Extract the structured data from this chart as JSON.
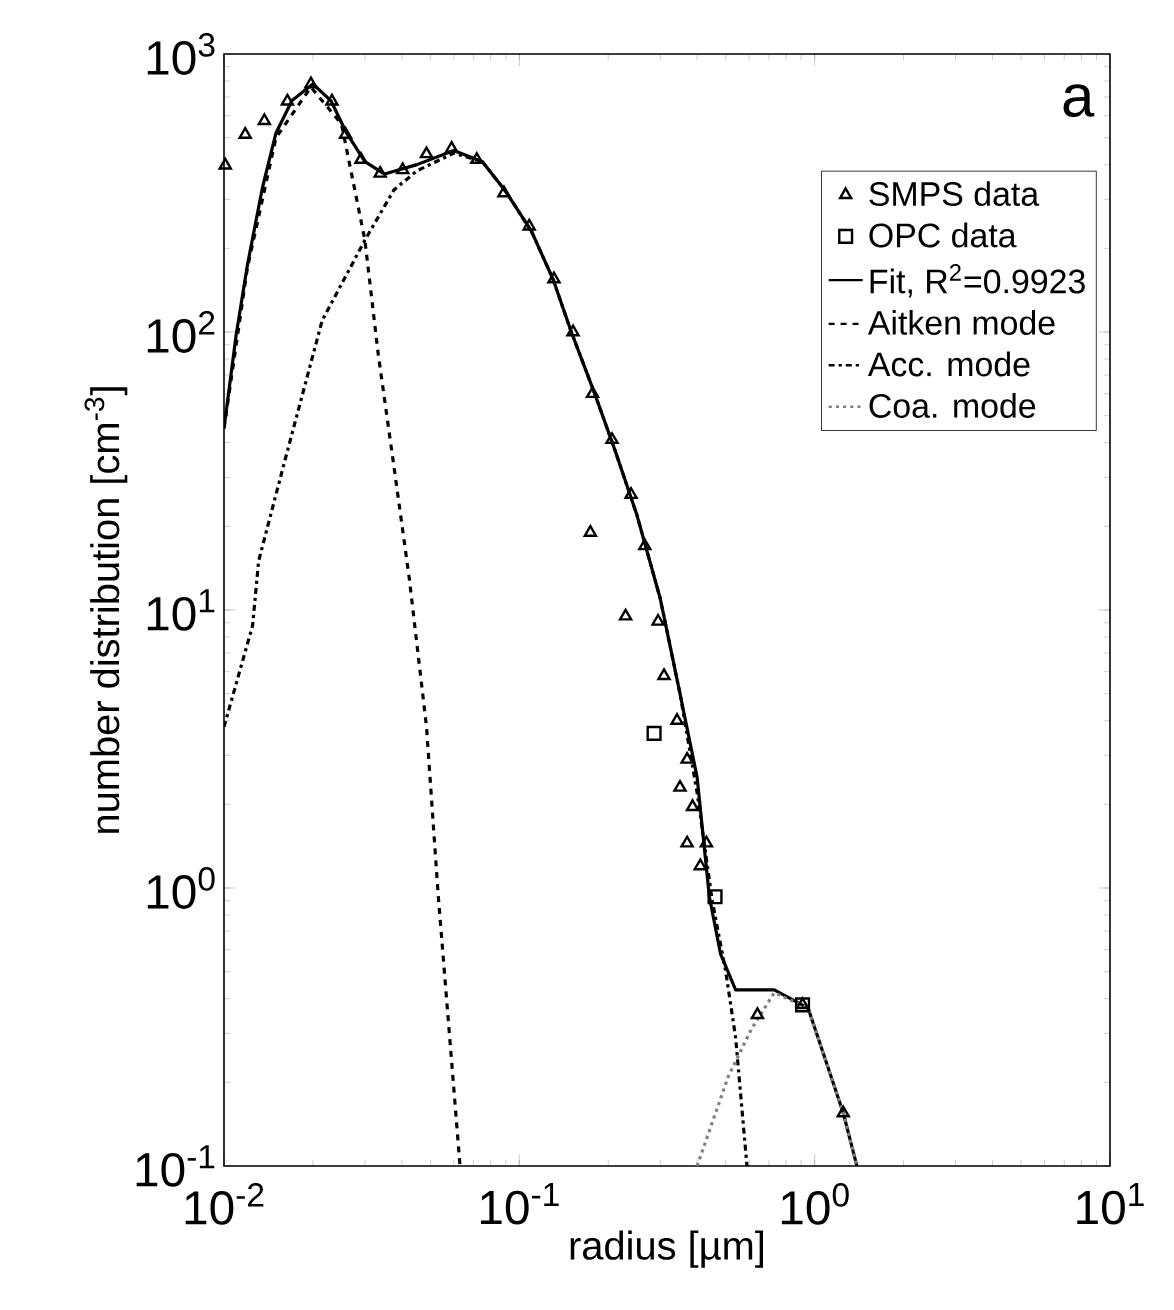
{
  "chart_data": {
    "type": "line",
    "xlabel": "radius [µm]",
    "ylabel": "number distribution [cm$^{-3}$]",
    "annotations": [
      "a"
    ],
    "log": "xy",
    "legend": "top right",
    "grid": false,
    "xlim": [
      0.01,
      10
    ],
    "ylim": [
      0.1,
      1000
    ],
    "xticks": [
      {
        "value": 0.01,
        "label": "10$^{-2}$"
      },
      {
        "value": 0.1,
        "label": "10$^{-1}$"
      },
      {
        "value": 1,
        "label": "10$^{0}$"
      },
      {
        "value": 10,
        "label": "10$^{1}$"
      }
    ],
    "yticks": [
      {
        "value": 0.1,
        "label": "10$^{-1}$"
      },
      {
        "value": 1,
        "label": "10$^{0}$"
      },
      {
        "value": 10,
        "label": "10$^{1}$"
      },
      {
        "value": 100,
        "label": "10$^{2}$"
      },
      {
        "value": 1000,
        "label": "10$^{3}$"
      }
    ],
    "series": [
      {
        "name": "SMPS data",
        "type": "scatter",
        "marker": "triangle",
        "color": "#000000",
        "x": [
          0.0101,
          0.0118,
          0.0137,
          0.0164,
          0.0197,
          0.0232,
          0.0258,
          0.0291,
          0.0338,
          0.0403,
          0.0485,
          0.059,
          0.0718,
          0.0887,
          0.108,
          0.131,
          0.152,
          0.177,
          0.206,
          0.239,
          0.266,
          0.174,
          0.229,
          0.295,
          0.309,
          0.342,
          0.37,
          0.35,
          0.386,
          0.37,
          0.43,
          0.41,
          0.64,
          0.91,
          1.25
        ],
        "values": [
          398,
          513,
          575,
          676,
          780,
          676,
          513,
          417,
          372,
          383,
          437,
          457,
          417,
          316,
          240,
          155,
          100,
          60,
          41,
          26,
          17,
          19,
          9.5,
          9.1,
          5.8,
          4.0,
          2.9,
          2.3,
          1.96,
          1.45,
          1.45,
          1.2,
          0.35,
          0.38,
          0.155
        ]
      },
      {
        "name": "OPC data",
        "type": "scatter",
        "marker": "square",
        "color": "#000000",
        "x": [
          0.286,
          0.46,
          0.91
        ],
        "values": [
          3.6,
          0.93,
          0.38
        ]
      },
      {
        "name": "Fit, R$^{2}$=0.9923",
        "line_style": "solid",
        "color": "#000000",
        "x": [
          0.01,
          0.011,
          0.012,
          0.0135,
          0.015,
          0.017,
          0.02,
          0.023,
          0.026,
          0.03,
          0.035,
          0.045,
          0.06,
          0.075,
          0.09,
          0.11,
          0.13,
          0.15,
          0.18,
          0.21,
          0.25,
          0.3,
          0.35,
          0.4,
          0.44,
          0.48,
          0.54,
          0.73,
          0.95,
          1.25,
          1.39
        ],
        "values": [
          45,
          98,
          174,
          331,
          520,
          680,
          780,
          680,
          520,
          410,
          370,
          400,
          450,
          410,
          320,
          230,
          155,
          100,
          60,
          38,
          22,
          11,
          5,
          2.5,
          0.93,
          0.58,
          0.43,
          0.43,
          0.37,
          0.155,
          0.1
        ]
      },
      {
        "name": "Aitken mode",
        "line_style": "dashed",
        "color": "#000000",
        "x": [
          0.01,
          0.012,
          0.015,
          0.0197,
          0.025,
          0.03,
          0.0333,
          0.0376,
          0.0424,
          0.0485,
          0.0531,
          0.063
        ],
        "values": [
          45,
          170,
          500,
          760,
          560,
          214,
          83,
          33,
          13,
          3.8,
          0.95,
          0.1
        ]
      },
      {
        "name": "Acc. mode",
        "line_style": "dashdot",
        "color": "#000000",
        "x": [
          0.01,
          0.0125,
          0.0131,
          0.0159,
          0.0215,
          0.03,
          0.0376,
          0.045,
          0.06,
          0.075,
          0.09,
          0.11,
          0.13,
          0.15,
          0.18,
          0.21,
          0.25,
          0.3,
          0.35,
          0.4,
          0.45,
          0.5,
          0.54,
          0.59
        ],
        "values": [
          3.8,
          8.8,
          15,
          33,
          110,
          214,
          324,
          380,
          440,
          410,
          320,
          230,
          155,
          100,
          60,
          38,
          22,
          11,
          5,
          2.2,
          0.9,
          0.5,
          0.29,
          0.1
        ]
      },
      {
        "name": "Coa. mode",
        "line_style": "dotted",
        "color": "#808080",
        "x": [
          0.4,
          0.51,
          0.61,
          0.73,
          0.95,
          1.25,
          1.39
        ],
        "values": [
          0.1,
          0.21,
          0.31,
          0.42,
          0.37,
          0.155,
          0.1
        ]
      }
    ]
  }
}
